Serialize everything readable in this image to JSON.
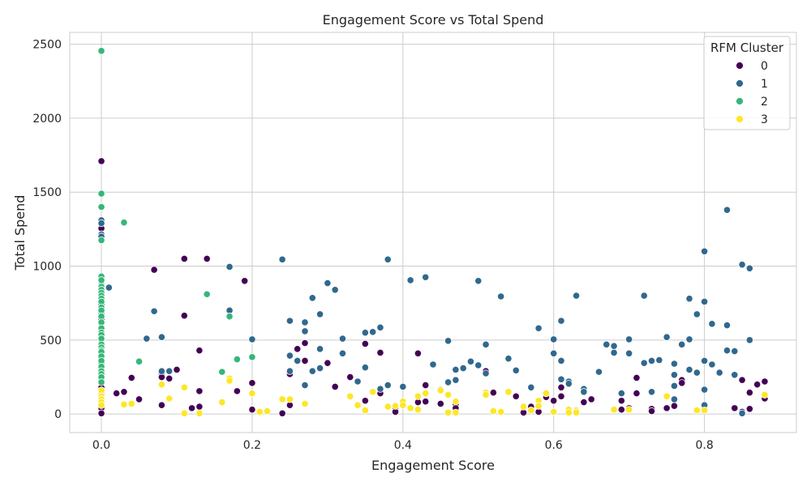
{
  "chart_data": {
    "type": "scatter",
    "title": "Engagement Score vs Total Spend",
    "xlabel": "Engagement Score",
    "ylabel": "Total Spend",
    "xlim": [
      -0.042,
      0.922
    ],
    "ylim": [
      -125,
      2580
    ],
    "x_ticks": [
      0.0,
      0.2,
      0.4,
      0.6,
      0.8
    ],
    "x_tick_labels": [
      "0.0",
      "0.2",
      "0.4",
      "0.6",
      "0.8"
    ],
    "y_ticks": [
      0,
      500,
      1000,
      1500,
      2000,
      2500
    ],
    "y_tick_labels": [
      "0",
      "500",
      "1000",
      "1500",
      "2000",
      "2500"
    ],
    "grid": true,
    "legend": {
      "title": "RFM Cluster",
      "placement": "top-right"
    },
    "series": [
      {
        "name": "0",
        "color": "#440154",
        "points": [
          [
            0.0,
            1710
          ],
          [
            0.0,
            1255
          ],
          [
            0.0,
            880
          ],
          [
            0.0,
            830
          ],
          [
            0.0,
            740
          ],
          [
            0.0,
            640
          ],
          [
            0.0,
            600
          ],
          [
            0.0,
            530
          ],
          [
            0.0,
            480
          ],
          [
            0.0,
            440
          ],
          [
            0.0,
            400
          ],
          [
            0.0,
            350
          ],
          [
            0.0,
            300
          ],
          [
            0.0,
            260
          ],
          [
            0.0,
            230
          ],
          [
            0.0,
            180
          ],
          [
            0.0,
            130
          ],
          [
            0.0,
            95
          ],
          [
            0.0,
            40
          ],
          [
            0.0,
            5
          ],
          [
            0.02,
            140
          ],
          [
            0.03,
            150
          ],
          [
            0.04,
            245
          ],
          [
            0.05,
            100
          ],
          [
            0.07,
            975
          ],
          [
            0.08,
            275
          ],
          [
            0.08,
            250
          ],
          [
            0.08,
            60
          ],
          [
            0.09,
            240
          ],
          [
            0.1,
            300
          ],
          [
            0.11,
            1050
          ],
          [
            0.11,
            665
          ],
          [
            0.12,
            40
          ],
          [
            0.13,
            430
          ],
          [
            0.13,
            155
          ],
          [
            0.13,
            50
          ],
          [
            0.14,
            1050
          ],
          [
            0.18,
            155
          ],
          [
            0.19,
            900
          ],
          [
            0.2,
            210
          ],
          [
            0.2,
            30
          ],
          [
            0.24,
            5
          ],
          [
            0.25,
            270
          ],
          [
            0.25,
            60
          ],
          [
            0.26,
            440
          ],
          [
            0.27,
            480
          ],
          [
            0.27,
            360
          ],
          [
            0.3,
            345
          ],
          [
            0.31,
            185
          ],
          [
            0.33,
            250
          ],
          [
            0.35,
            475
          ],
          [
            0.35,
            90
          ],
          [
            0.37,
            415
          ],
          [
            0.37,
            140
          ],
          [
            0.39,
            40
          ],
          [
            0.39,
            15
          ],
          [
            0.42,
            410
          ],
          [
            0.42,
            80
          ],
          [
            0.43,
            195
          ],
          [
            0.43,
            85
          ],
          [
            0.45,
            70
          ],
          [
            0.47,
            65
          ],
          [
            0.47,
            40
          ],
          [
            0.51,
            290
          ],
          [
            0.52,
            145
          ],
          [
            0.55,
            120
          ],
          [
            0.56,
            10
          ],
          [
            0.57,
            50
          ],
          [
            0.58,
            15
          ],
          [
            0.59,
            115
          ],
          [
            0.6,
            90
          ],
          [
            0.61,
            180
          ],
          [
            0.61,
            120
          ],
          [
            0.63,
            25
          ],
          [
            0.64,
            80
          ],
          [
            0.65,
            100
          ],
          [
            0.69,
            90
          ],
          [
            0.69,
            30
          ],
          [
            0.7,
            40
          ],
          [
            0.71,
            245
          ],
          [
            0.71,
            140
          ],
          [
            0.73,
            35
          ],
          [
            0.73,
            20
          ],
          [
            0.75,
            40
          ],
          [
            0.76,
            55
          ],
          [
            0.77,
            230
          ],
          [
            0.77,
            210
          ],
          [
            0.8,
            35
          ],
          [
            0.84,
            40
          ],
          [
            0.85,
            230
          ],
          [
            0.85,
            15
          ],
          [
            0.86,
            145
          ],
          [
            0.86,
            35
          ],
          [
            0.87,
            200
          ],
          [
            0.88,
            220
          ],
          [
            0.88,
            105
          ]
        ]
      },
      {
        "name": "1",
        "color": "#31688e",
        "points": [
          [
            0.0,
            1310
          ],
          [
            0.0,
            1290
          ],
          [
            0.0,
            1215
          ],
          [
            0.0,
            1200
          ],
          [
            0.0,
            905
          ],
          [
            0.0,
            870
          ],
          [
            0.0,
            680
          ],
          [
            0.0,
            610
          ],
          [
            0.0,
            560
          ],
          [
            0.0,
            500
          ],
          [
            0.0,
            410
          ],
          [
            0.0,
            345
          ],
          [
            0.0,
            280
          ],
          [
            0.01,
            855
          ],
          [
            0.06,
            510
          ],
          [
            0.07,
            695
          ],
          [
            0.08,
            520
          ],
          [
            0.08,
            290
          ],
          [
            0.09,
            290
          ],
          [
            0.17,
            995
          ],
          [
            0.17,
            700
          ],
          [
            0.2,
            505
          ],
          [
            0.24,
            1045
          ],
          [
            0.25,
            630
          ],
          [
            0.25,
            395
          ],
          [
            0.25,
            290
          ],
          [
            0.26,
            360
          ],
          [
            0.27,
            620
          ],
          [
            0.27,
            560
          ],
          [
            0.27,
            195
          ],
          [
            0.28,
            785
          ],
          [
            0.28,
            290
          ],
          [
            0.29,
            675
          ],
          [
            0.29,
            440
          ],
          [
            0.29,
            310
          ],
          [
            0.3,
            885
          ],
          [
            0.31,
            840
          ],
          [
            0.32,
            510
          ],
          [
            0.32,
            410
          ],
          [
            0.34,
            220
          ],
          [
            0.35,
            550
          ],
          [
            0.35,
            315
          ],
          [
            0.36,
            555
          ],
          [
            0.37,
            585
          ],
          [
            0.37,
            170
          ],
          [
            0.38,
            1045
          ],
          [
            0.38,
            195
          ],
          [
            0.4,
            185
          ],
          [
            0.41,
            905
          ],
          [
            0.43,
            925
          ],
          [
            0.44,
            335
          ],
          [
            0.45,
            165
          ],
          [
            0.46,
            495
          ],
          [
            0.46,
            215
          ],
          [
            0.47,
            300
          ],
          [
            0.47,
            230
          ],
          [
            0.48,
            310
          ],
          [
            0.49,
            355
          ],
          [
            0.5,
            900
          ],
          [
            0.5,
            330
          ],
          [
            0.51,
            470
          ],
          [
            0.51,
            275
          ],
          [
            0.53,
            795
          ],
          [
            0.54,
            375
          ],
          [
            0.55,
            295
          ],
          [
            0.57,
            180
          ],
          [
            0.58,
            580
          ],
          [
            0.6,
            505
          ],
          [
            0.6,
            410
          ],
          [
            0.61,
            630
          ],
          [
            0.61,
            360
          ],
          [
            0.61,
            235
          ],
          [
            0.62,
            220
          ],
          [
            0.62,
            205
          ],
          [
            0.63,
            800
          ],
          [
            0.64,
            170
          ],
          [
            0.64,
            150
          ],
          [
            0.66,
            285
          ],
          [
            0.67,
            470
          ],
          [
            0.68,
            460
          ],
          [
            0.68,
            415
          ],
          [
            0.69,
            140
          ],
          [
            0.7,
            505
          ],
          [
            0.7,
            410
          ],
          [
            0.72,
            800
          ],
          [
            0.72,
            345
          ],
          [
            0.73,
            360
          ],
          [
            0.73,
            150
          ],
          [
            0.74,
            365
          ],
          [
            0.75,
            520
          ],
          [
            0.76,
            340
          ],
          [
            0.76,
            265
          ],
          [
            0.76,
            190
          ],
          [
            0.76,
            100
          ],
          [
            0.77,
            470
          ],
          [
            0.78,
            780
          ],
          [
            0.78,
            505
          ],
          [
            0.78,
            300
          ],
          [
            0.79,
            675
          ],
          [
            0.79,
            280
          ],
          [
            0.8,
            1100
          ],
          [
            0.8,
            760
          ],
          [
            0.8,
            360
          ],
          [
            0.8,
            165
          ],
          [
            0.8,
            60
          ],
          [
            0.81,
            610
          ],
          [
            0.81,
            335
          ],
          [
            0.82,
            280
          ],
          [
            0.83,
            1380
          ],
          [
            0.83,
            600
          ],
          [
            0.83,
            430
          ],
          [
            0.84,
            425
          ],
          [
            0.84,
            265
          ],
          [
            0.85,
            1010
          ],
          [
            0.85,
            5
          ],
          [
            0.86,
            985
          ],
          [
            0.86,
            500
          ]
        ]
      },
      {
        "name": "2",
        "color": "#35b779",
        "points": [
          [
            0.0,
            2455
          ],
          [
            0.0,
            1490
          ],
          [
            0.0,
            1400
          ],
          [
            0.0,
            1175
          ],
          [
            0.0,
            930
          ],
          [
            0.0,
            905
          ],
          [
            0.0,
            860
          ],
          [
            0.0,
            840
          ],
          [
            0.0,
            820
          ],
          [
            0.0,
            800
          ],
          [
            0.0,
            780
          ],
          [
            0.0,
            760
          ],
          [
            0.0,
            720
          ],
          [
            0.0,
            700
          ],
          [
            0.0,
            660
          ],
          [
            0.0,
            620
          ],
          [
            0.0,
            580
          ],
          [
            0.0,
            550
          ],
          [
            0.0,
            535
          ],
          [
            0.0,
            510
          ],
          [
            0.0,
            470
          ],
          [
            0.0,
            450
          ],
          [
            0.0,
            430
          ],
          [
            0.0,
            420
          ],
          [
            0.0,
            390
          ],
          [
            0.0,
            360
          ],
          [
            0.0,
            320
          ],
          [
            0.0,
            290
          ],
          [
            0.0,
            270
          ],
          [
            0.0,
            250
          ],
          [
            0.0,
            215
          ],
          [
            0.03,
            1295
          ],
          [
            0.05,
            355
          ],
          [
            0.14,
            810
          ],
          [
            0.16,
            285
          ],
          [
            0.17,
            660
          ],
          [
            0.18,
            370
          ],
          [
            0.2,
            385
          ]
        ]
      },
      {
        "name": "3",
        "color": "#fde725",
        "points": [
          [
            0.0,
            160
          ],
          [
            0.0,
            120
          ],
          [
            0.0,
            100
          ],
          [
            0.0,
            80
          ],
          [
            0.0,
            60
          ],
          [
            0.03,
            65
          ],
          [
            0.04,
            70
          ],
          [
            0.08,
            200
          ],
          [
            0.09,
            105
          ],
          [
            0.11,
            180
          ],
          [
            0.11,
            5
          ],
          [
            0.13,
            5
          ],
          [
            0.16,
            80
          ],
          [
            0.17,
            240
          ],
          [
            0.17,
            225
          ],
          [
            0.2,
            140
          ],
          [
            0.21,
            15
          ],
          [
            0.22,
            20
          ],
          [
            0.24,
            100
          ],
          [
            0.25,
            100
          ],
          [
            0.27,
            70
          ],
          [
            0.33,
            120
          ],
          [
            0.34,
            60
          ],
          [
            0.35,
            25
          ],
          [
            0.36,
            150
          ],
          [
            0.38,
            50
          ],
          [
            0.39,
            55
          ],
          [
            0.4,
            85
          ],
          [
            0.4,
            60
          ],
          [
            0.41,
            40
          ],
          [
            0.42,
            120
          ],
          [
            0.42,
            30
          ],
          [
            0.43,
            140
          ],
          [
            0.45,
            160
          ],
          [
            0.46,
            130
          ],
          [
            0.46,
            10
          ],
          [
            0.47,
            85
          ],
          [
            0.47,
            10
          ],
          [
            0.51,
            145
          ],
          [
            0.51,
            130
          ],
          [
            0.52,
            20
          ],
          [
            0.53,
            15
          ],
          [
            0.54,
            150
          ],
          [
            0.56,
            50
          ],
          [
            0.57,
            25
          ],
          [
            0.58,
            90
          ],
          [
            0.58,
            55
          ],
          [
            0.59,
            140
          ],
          [
            0.6,
            15
          ],
          [
            0.62,
            30
          ],
          [
            0.62,
            10
          ],
          [
            0.63,
            20
          ],
          [
            0.63,
            10
          ],
          [
            0.68,
            30
          ],
          [
            0.7,
            30
          ],
          [
            0.75,
            120
          ],
          [
            0.79,
            25
          ],
          [
            0.8,
            25
          ],
          [
            0.88,
            130
          ]
        ]
      }
    ]
  }
}
